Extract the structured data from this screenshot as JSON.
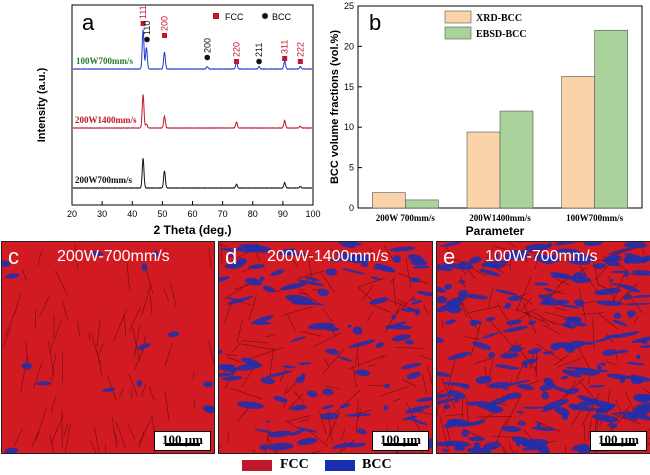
{
  "chart_data": [
    {
      "type": "line",
      "panel_label": "a",
      "xlabel": "2 Theta (deg.)",
      "ylabel": "Intensity (a.u.)",
      "xlim": [
        20,
        100
      ],
      "x_ticks": [
        "20",
        "30",
        "40",
        "50",
        "60",
        "70",
        "80",
        "90",
        "100"
      ],
      "legend": [
        {
          "name": "FCC",
          "marker": "square",
          "color": "#c0182a"
        },
        {
          "name": "BCC",
          "marker": "circle",
          "color": "#111111"
        }
      ],
      "series": [
        {
          "name": "100W700mm/s",
          "color": "#1f3cc8",
          "label_color": "#2a7a2a",
          "peaks": [
            [
              43.6,
              1.0
            ],
            [
              44.7,
              0.55
            ],
            [
              50.7,
              0.42
            ],
            [
              64.9,
              0.06
            ],
            [
              74.6,
              0.18
            ],
            [
              82.1,
              0.06
            ],
            [
              90.6,
              0.2
            ],
            [
              95.8,
              0.06
            ]
          ]
        },
        {
          "name": "200W1400mm/s",
          "color": "#c0182a",
          "label_color": "#c0182a",
          "peaks": [
            [
              43.6,
              1.0
            ],
            [
              44.7,
              0.12
            ],
            [
              50.7,
              0.35
            ],
            [
              74.6,
              0.18
            ],
            [
              90.6,
              0.22
            ],
            [
              95.8,
              0.05
            ]
          ]
        },
        {
          "name": "200W700mm/s",
          "color": "#111111",
          "label_color": "#111111",
          "peaks": [
            [
              43.6,
              1.0
            ],
            [
              50.7,
              0.58
            ],
            [
              74.6,
              0.12
            ],
            [
              90.6,
              0.18
            ],
            [
              95.8,
              0.05
            ]
          ]
        }
      ],
      "annotations": [
        {
          "text": "111",
          "x": 43.6,
          "phase": "FCC"
        },
        {
          "text": "110",
          "x": 44.9,
          "phase": "BCC"
        },
        {
          "text": "200",
          "x": 50.7,
          "phase": "FCC"
        },
        {
          "text": "200",
          "x": 64.9,
          "phase": "BCC"
        },
        {
          "text": "220",
          "x": 74.6,
          "phase": "FCC"
        },
        {
          "text": "211",
          "x": 82.1,
          "phase": "BCC"
        },
        {
          "text": "311",
          "x": 90.6,
          "phase": "FCC"
        },
        {
          "text": "222",
          "x": 95.8,
          "phase": "FCC"
        }
      ]
    },
    {
      "type": "bar",
      "panel_label": "b",
      "xlabel": "Parameter",
      "ylabel": "BCC volume fractions (vol.%)",
      "ylim": [
        0,
        25
      ],
      "y_ticks": [
        "0",
        "5",
        "10",
        "15",
        "20",
        "25"
      ],
      "categories": [
        "200W 700mm/s",
        "200W1400mm/s",
        "100W700mm/s"
      ],
      "series": [
        {
          "name": "XRD-BCC",
          "color": "#fbd3a8",
          "values": [
            1.9,
            9.4,
            16.3
          ]
        },
        {
          "name": "EBSD-BCC",
          "color": "#a9d39a",
          "values": [
            1.0,
            12.0,
            22.0
          ]
        }
      ]
    }
  ],
  "ebsd_panels": [
    {
      "letter": "c",
      "title": "200W-700mm/s",
      "scalebar": "100 μm",
      "bcc_fraction": 0.01
    },
    {
      "letter": "d",
      "title": "200W-1400mm/s",
      "scalebar": "100 μm",
      "bcc_fraction": 0.12
    },
    {
      "letter": "e",
      "title": "100W-700mm/s",
      "scalebar": "100 μm",
      "bcc_fraction": 0.22
    }
  ],
  "phase_legend": [
    {
      "name": "FCC",
      "color": "#c0182a"
    },
    {
      "name": "BCC",
      "color": "#1a2fb0"
    }
  ]
}
